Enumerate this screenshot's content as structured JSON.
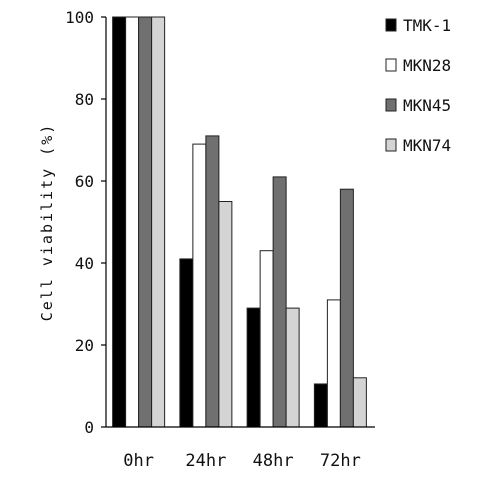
{
  "chart_data": {
    "type": "bar",
    "ylabel": "Cell viability (%)",
    "ylim": [
      0,
      100
    ],
    "yticks": [
      0,
      20,
      40,
      60,
      80,
      100
    ],
    "categories": [
      "0hr",
      "24hr",
      "48hr",
      "72hr"
    ],
    "series": [
      {
        "name": "TMK-1",
        "color": "#000000",
        "values": [
          100,
          41,
          29,
          10.5
        ]
      },
      {
        "name": "MKN28",
        "color": "#ffffff",
        "values": [
          100,
          69,
          43,
          31
        ]
      },
      {
        "name": "MKN45",
        "color": "#707070",
        "values": [
          100,
          71,
          61,
          58
        ]
      },
      {
        "name": "MKN74",
        "color": "#d4d4d4",
        "values": [
          100,
          55,
          29,
          12
        ]
      }
    ],
    "grid": false,
    "legend_position": "right"
  }
}
